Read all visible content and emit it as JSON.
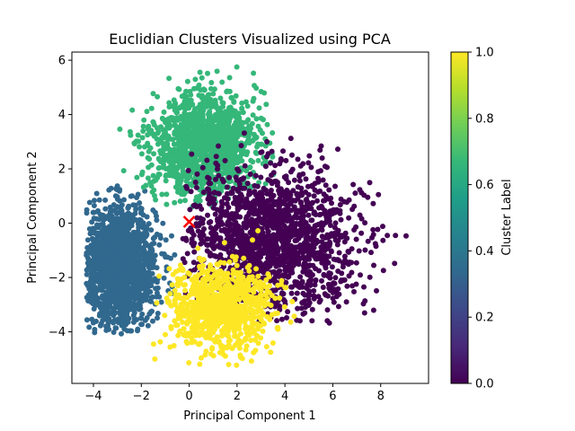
{
  "chart_data": {
    "type": "scatter",
    "title": "Euclidian Clusters Visualized using PCA",
    "xlabel": "Principal Component 1",
    "ylabel": "Principal Component 2",
    "xlim": [
      -4.9,
      10.0
    ],
    "ylim": [
      -5.9,
      6.3
    ],
    "xticks": [
      -4,
      -2,
      0,
      2,
      4,
      6,
      8
    ],
    "xtick_labels": [
      "−4",
      "−2",
      "0",
      "2",
      "4",
      "6",
      "8"
    ],
    "yticks": [
      -4,
      -2,
      0,
      2,
      4,
      6
    ],
    "ytick_labels": [
      "−4",
      "−2",
      "0",
      "2",
      "4",
      "6"
    ],
    "grid": false,
    "colorbar": {
      "label": "Cluster Label",
      "range": [
        0.0,
        1.0
      ],
      "ticks": [
        0.0,
        0.2,
        0.4,
        0.6,
        0.8,
        1.0
      ],
      "tick_labels": [
        "0.0",
        "0.2",
        "0.4",
        "0.6",
        "0.8",
        "1.0"
      ],
      "colormap": [
        "#440154",
        "#482878",
        "#3e4989",
        "#31688e",
        "#26828e",
        "#1f9e89",
        "#35b779",
        "#6ece58",
        "#b5de2b",
        "#fde725"
      ]
    },
    "clusters": [
      {
        "label_value": 0.0,
        "color": "#440154",
        "centroid": [
          3.5,
          -0.6
        ],
        "spread": [
          1.8,
          1.25
        ],
        "extent_x": [
          -0.3,
          9.3
        ],
        "extent_y": [
          -3.8,
          3.8
        ]
      },
      {
        "label_value": 0.333,
        "color": "#31688e",
        "centroid": [
          -2.9,
          -1.6
        ],
        "spread": [
          0.75,
          1.1
        ],
        "extent_x": [
          -4.3,
          -0.6
        ],
        "extent_y": [
          -4.1,
          1.4
        ]
      },
      {
        "label_value": 0.667,
        "color": "#35b779",
        "centroid": [
          0.6,
          2.9
        ],
        "spread": [
          1.1,
          0.95
        ],
        "extent_x": [
          -3.0,
          4.0
        ],
        "extent_y": [
          0.6,
          5.8
        ]
      },
      {
        "label_value": 1.0,
        "color": "#fde725",
        "centroid": [
          1.3,
          -3.1
        ],
        "spread": [
          1.05,
          0.8
        ],
        "extent_x": [
          -2.2,
          5.2
        ],
        "extent_y": [
          -5.4,
          1.2
        ]
      }
    ],
    "centroid_marker": {
      "symbol": "x",
      "color": "#ff0000",
      "position": [
        0.0,
        0.05
      ]
    }
  }
}
